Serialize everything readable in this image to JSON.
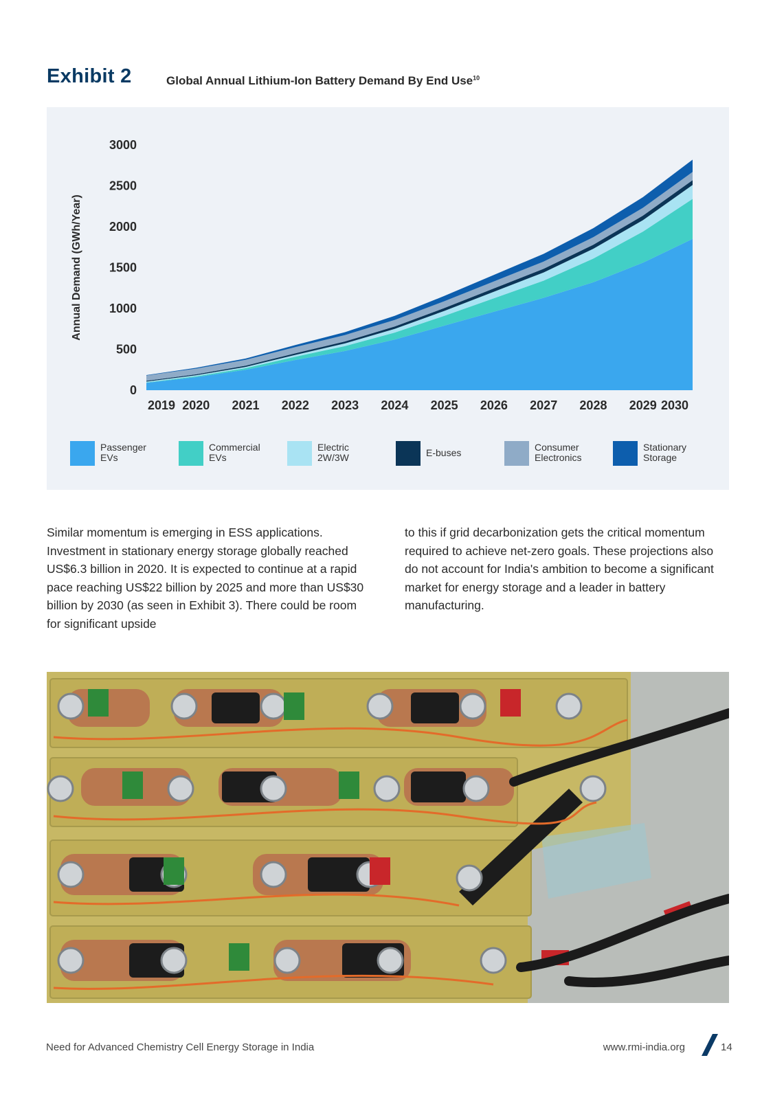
{
  "header": {
    "exhibit_label": "Exhibit 2",
    "title": "Global Annual Lithium-Ion Battery Demand By End Use",
    "title_superscript": "10"
  },
  "chart_data": {
    "type": "area",
    "stacked": true,
    "title": "Global Annual Lithium-Ion Battery Demand By End Use",
    "xlabel": "",
    "ylabel": "Annual Demand (GWh/Year)",
    "ylim": [
      0,
      3000
    ],
    "yticks": [
      "0",
      "500",
      "1000",
      "1500",
      "2000",
      "2500",
      "3000"
    ],
    "categories": [
      "2019",
      "2020",
      "2021",
      "2022",
      "2023",
      "2024",
      "2025",
      "2026",
      "2027",
      "2028",
      "2029",
      "2030"
    ],
    "grid": false,
    "legend_position": "bottom",
    "series": [
      {
        "name": "Passenger EVs",
        "legend_lines": [
          "Passenger",
          "EVs"
        ],
        "color": "#3aa7ee",
        "values": [
          90,
          160,
          250,
          370,
          480,
          620,
          790,
          960,
          1130,
          1320,
          1560,
          1850
        ]
      },
      {
        "name": "Commercial EVs",
        "legend_lines": [
          "Commercial",
          "EVs"
        ],
        "color": "#42cfc6",
        "values": [
          5,
          10,
          20,
          40,
          60,
          85,
          120,
          165,
          210,
          290,
          380,
          490
        ]
      },
      {
        "name": "Electric 2W/3W",
        "legend_lines": [
          "Electric",
          "2W/3W"
        ],
        "color": "#a9e3f3",
        "values": [
          10,
          12,
          15,
          22,
          32,
          45,
          60,
          80,
          100,
          120,
          140,
          170
        ]
      },
      {
        "name": "E-buses",
        "legend_lines": [
          "E-buses"
        ],
        "color": "#0b3557",
        "values": [
          10,
          12,
          15,
          20,
          25,
          30,
          35,
          40,
          45,
          50,
          55,
          60
        ]
      },
      {
        "name": "Consumer Electronics",
        "legend_lines": [
          "Consumer",
          "Electronics"
        ],
        "color": "#8fabc7",
        "values": [
          65,
          70,
          72,
          75,
          78,
          80,
          83,
          86,
          88,
          92,
          96,
          100
        ]
      },
      {
        "name": "Stationary Storage",
        "legend_lines": [
          "Stationary",
          "Storage"
        ],
        "color": "#0d5ead",
        "values": [
          5,
          10,
          15,
          25,
          35,
          50,
          65,
          80,
          95,
          110,
          130,
          150
        ]
      }
    ]
  },
  "body": {
    "left_paragraph": "Similar momentum is emerging in ESS applications. Investment in stationary energy storage globally reached US$6.3 billion in 2020. It is expected to continue at a rapid pace reaching US$22 billion by 2025 and more than US$30 billion by 2030 (as seen in Exhibit 3). There could be room for significant upside",
    "right_paragraph": "to this if grid decarbonization gets the critical momentum required to achieve net-zero goals. These projections also do not account for India's ambition to become a significant market for energy storage and a leader in battery manufacturing."
  },
  "footer": {
    "report_title": "Need for Advanced Chemistry Cell Energy Storage in India",
    "website": "www.rmi-india.org",
    "page_number": "14",
    "slash_color": "#0b3a66"
  }
}
